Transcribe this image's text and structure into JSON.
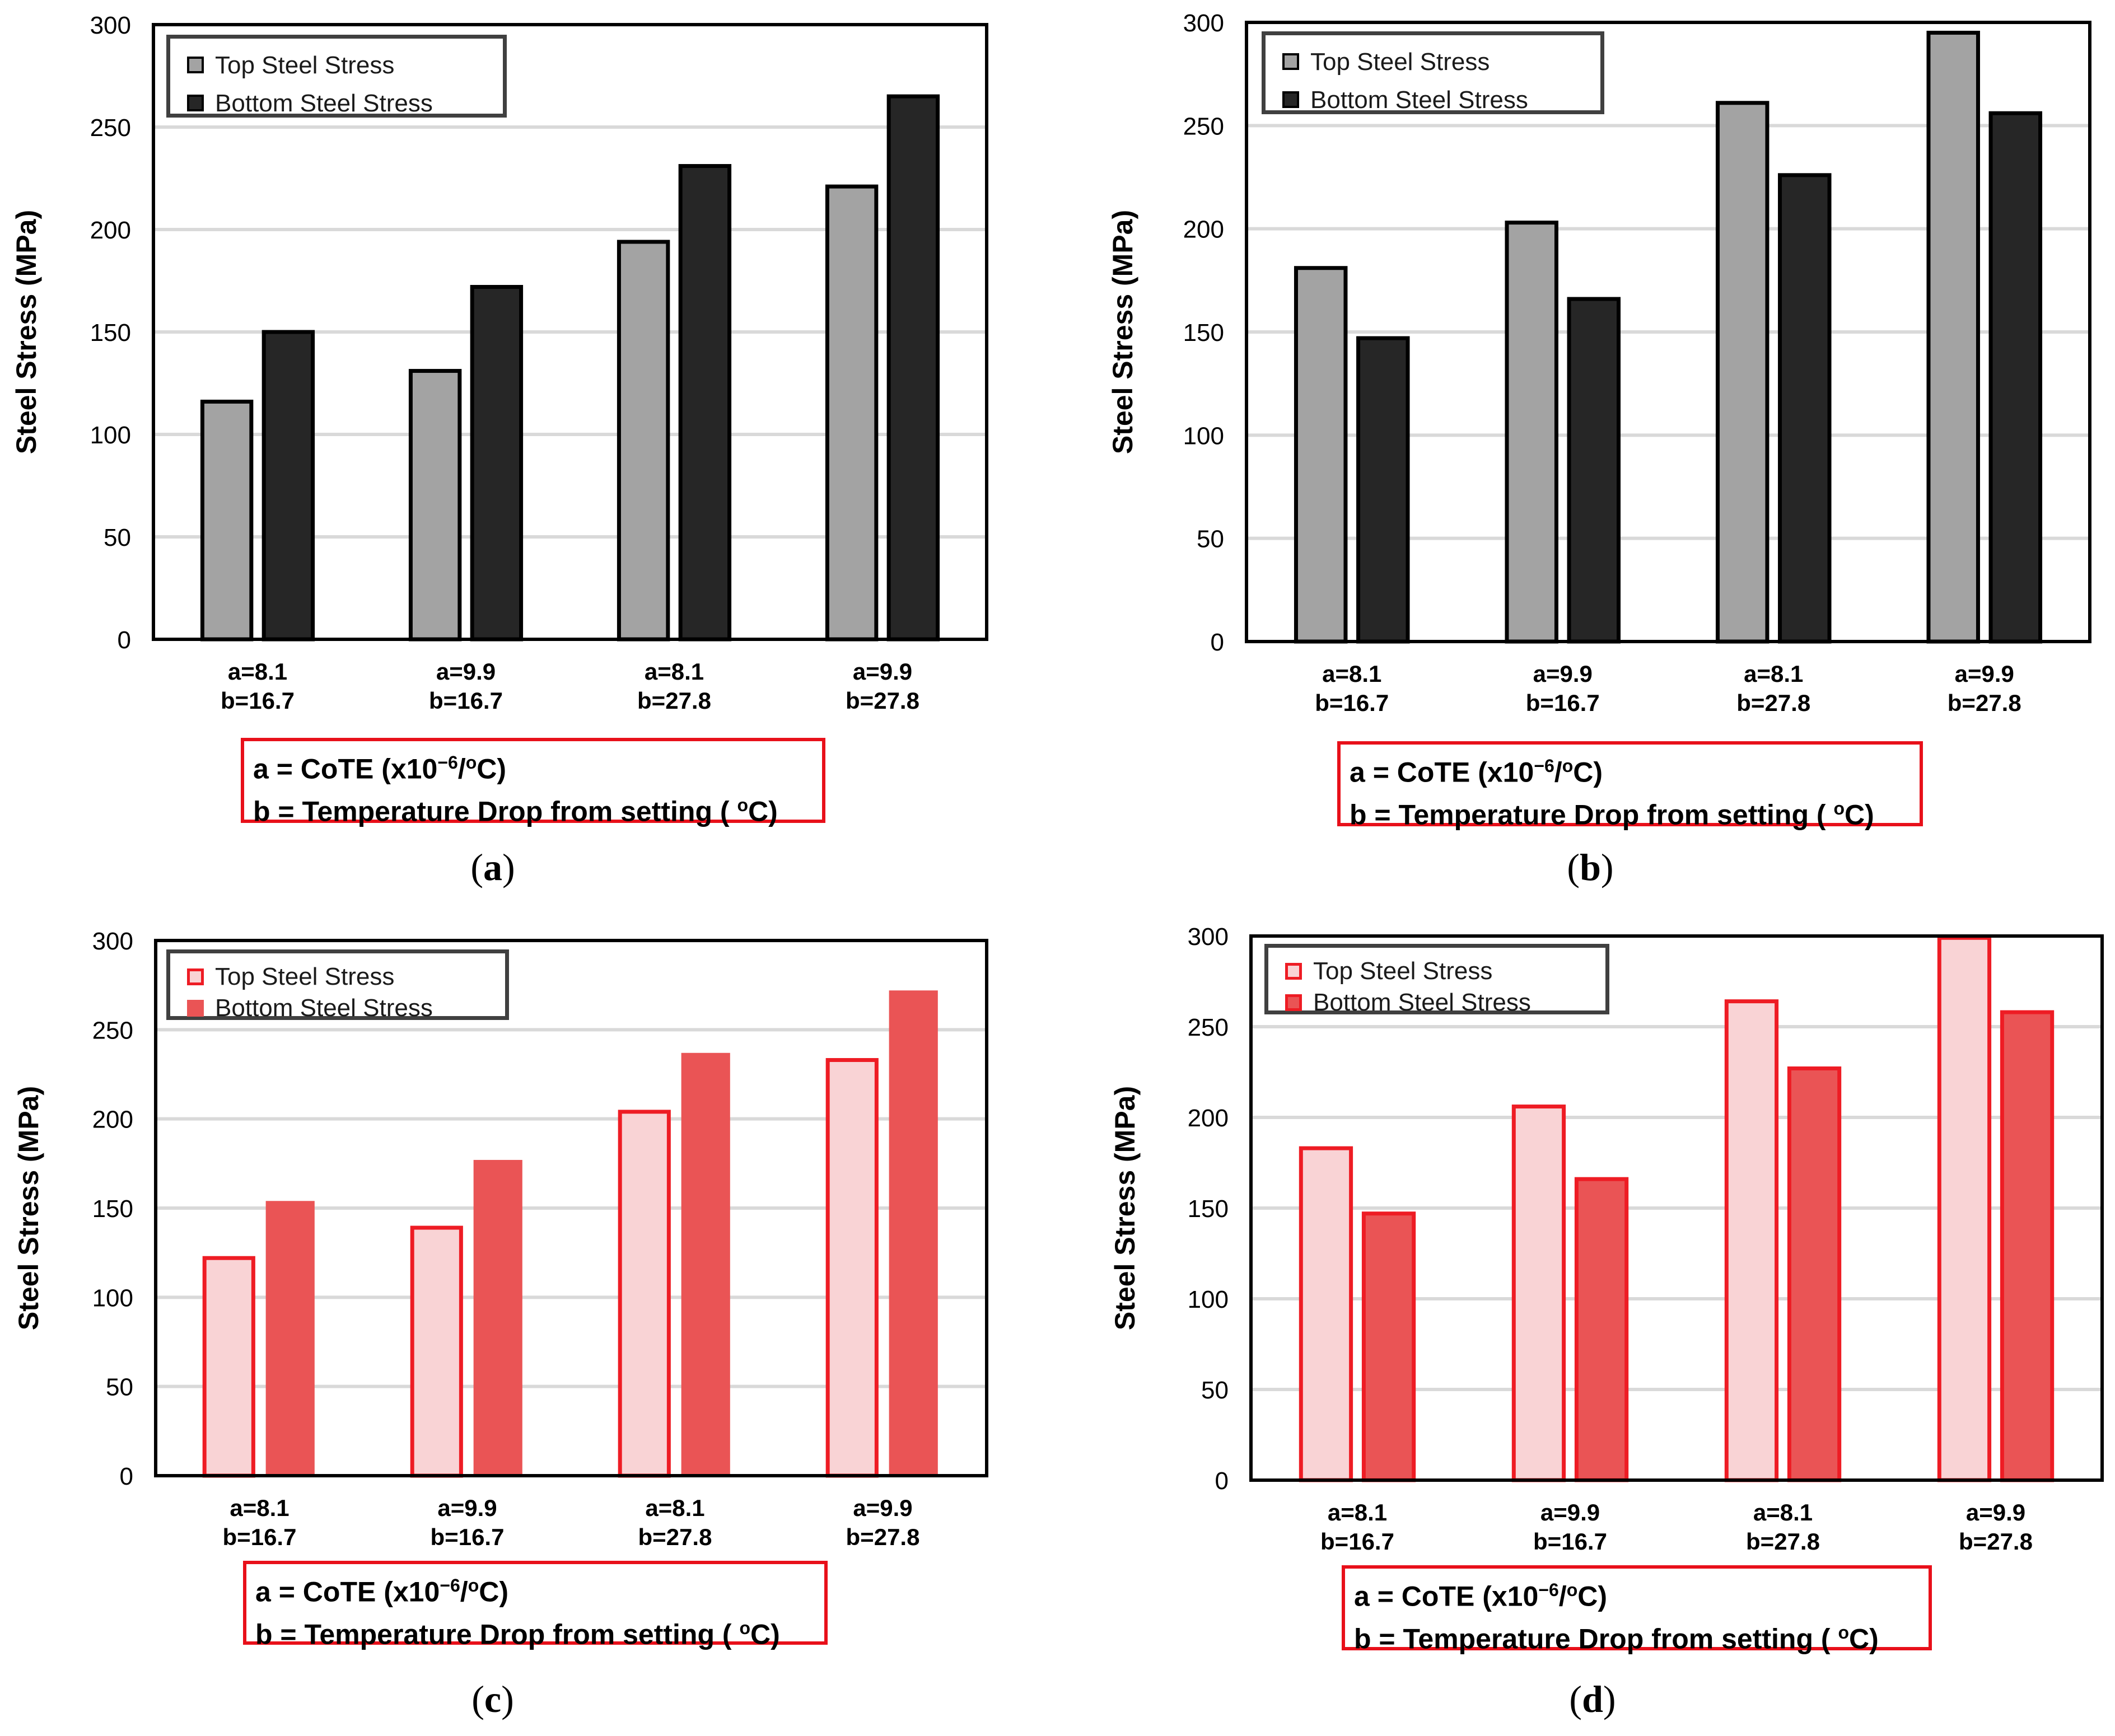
{
  "colors": {
    "gray_fill": "#a3a3a3",
    "gray_edge": "#000000",
    "dark_fill": "#262626",
    "dark_edge": "#000000",
    "pink_fill": "#f9d3d5",
    "pink_edge": "#ee1c24",
    "red_fill": "#ea5455",
    "red_edge": "#ee1c24",
    "grid": "#d9d9d9",
    "note_border": "#e8101a"
  },
  "note": {
    "line1": "a = CoTE (x10",
    "line1_exp": "−6",
    "line1_unit": "/",
    "line1_deg": "o",
    "line1_tail": "C)",
    "line2": "b = Temperature Drop from setting (",
    "line2_deg": "o",
    "line2_tail": "C)"
  },
  "chart_data": [
    {
      "type": "bar",
      "panel_label": "a",
      "ylabel": "Steel Stress (MPa)",
      "ylim": [
        0,
        300
      ],
      "yticks": [
        "0",
        "50",
        "100",
        "150",
        "200",
        "250",
        "300"
      ],
      "categories": [
        [
          "a=8.1",
          "b=16.7"
        ],
        [
          "a=9.9",
          "b=16.7"
        ],
        [
          "a=8.1",
          "b=27.8"
        ],
        [
          "a=9.9",
          "b=27.8"
        ]
      ],
      "series": [
        {
          "name": "Top Steel Stress",
          "values": [
            116,
            131,
            194,
            221
          ]
        },
        {
          "name": "Bottom Steel Stress",
          "values": [
            150,
            172,
            231,
            265
          ]
        }
      ],
      "grid": true,
      "legend": "top-left"
    },
    {
      "type": "bar",
      "panel_label": "b",
      "ylabel": "Steel Stress (MPa)",
      "ylim": [
        0,
        300
      ],
      "yticks": [
        "0",
        "50",
        "100",
        "150",
        "200",
        "250",
        "300"
      ],
      "categories": [
        [
          "a=8.1",
          "b=16.7"
        ],
        [
          "a=9.9",
          "b=16.7"
        ],
        [
          "a=8.1",
          "b=27.8"
        ],
        [
          "a=9.9",
          "b=27.8"
        ]
      ],
      "series": [
        {
          "name": "Top Steel Stress",
          "values": [
            181,
            203,
            261,
            295
          ]
        },
        {
          "name": "Bottom Steel Stress",
          "values": [
            147,
            166,
            226,
            256
          ]
        }
      ],
      "grid": true,
      "legend": "top-left"
    },
    {
      "type": "bar",
      "panel_label": "c",
      "ylabel": "Steel Stress (MPa)",
      "ylim": [
        0,
        300
      ],
      "yticks": [
        "0",
        "50",
        "100",
        "150",
        "200",
        "250",
        "300"
      ],
      "categories": [
        [
          "a=8.1",
          "b=16.7"
        ],
        [
          "a=9.9",
          "b=16.7"
        ],
        [
          "a=8.1",
          "b=27.8"
        ],
        [
          "a=9.9",
          "b=27.8"
        ]
      ],
      "series": [
        {
          "name": "Top Steel Stress",
          "values": [
            122,
            139,
            204,
            233
          ]
        },
        {
          "name": "Bottom Steel Stress",
          "values": [
            154,
            177,
            237,
            272
          ]
        }
      ],
      "grid": true,
      "legend": "top-left"
    },
    {
      "type": "bar",
      "panel_label": "d",
      "ylabel": "Steel Stress (MPa)",
      "ylim": [
        0,
        300
      ],
      "yticks": [
        "0",
        "50",
        "100",
        "150",
        "200",
        "250",
        "300"
      ],
      "categories": [
        [
          "a=8.1",
          "b=16.7"
        ],
        [
          "a=9.9",
          "b=16.7"
        ],
        [
          "a=8.1",
          "b=27.8"
        ],
        [
          "a=9.9",
          "b=27.8"
        ]
      ],
      "series": [
        {
          "name": "Top Steel Stress",
          "values": [
            183,
            206,
            264,
            299
          ]
        },
        {
          "name": "Bottom Steel Stress",
          "values": [
            147,
            166,
            227,
            258
          ]
        }
      ],
      "grid": true,
      "legend": "top-left"
    }
  ]
}
